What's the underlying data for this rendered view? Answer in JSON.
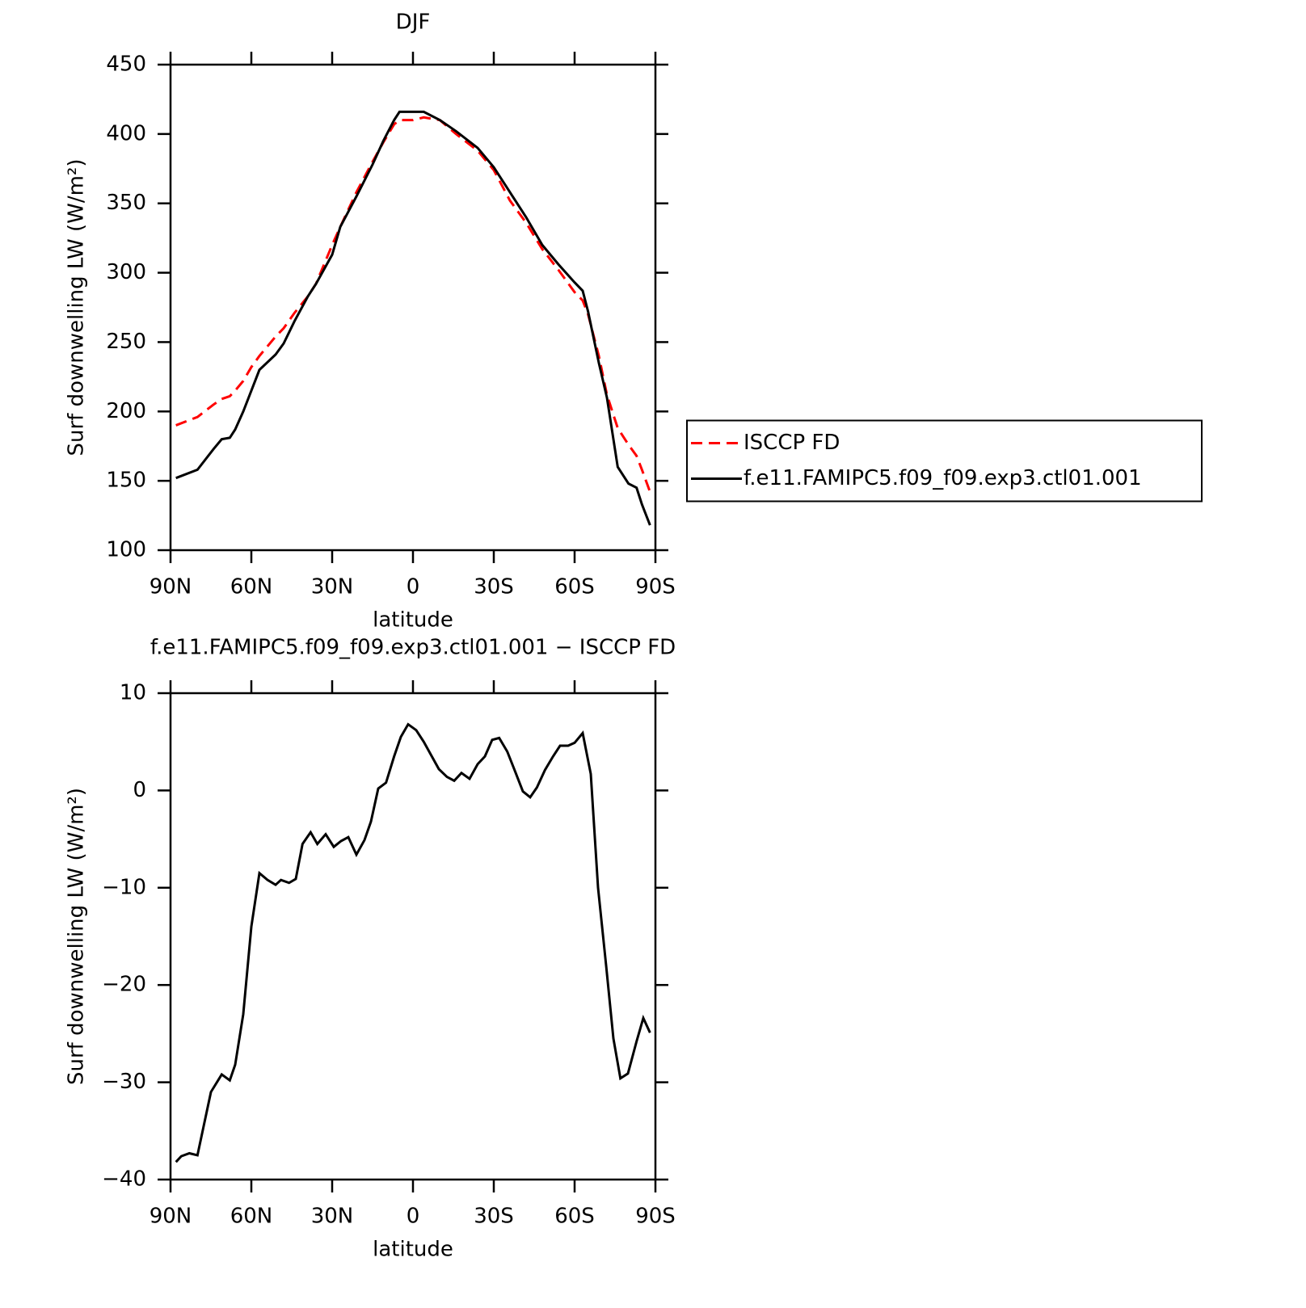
{
  "chart_data": [
    {
      "type": "line",
      "title": "DJF",
      "xlabel": "latitude",
      "ylabel": "Surf downwelling LW (W/m²)",
      "x": [
        88,
        80,
        74,
        71,
        68,
        66,
        63,
        60,
        57,
        51,
        48,
        44,
        39,
        36,
        30,
        27,
        21,
        15,
        11,
        7,
        5,
        0,
        -4,
        -10,
        -16,
        -24,
        -30,
        -36,
        -42,
        -48,
        -54,
        -60,
        -63,
        -65,
        -69,
        -72,
        -76,
        -80,
        -83,
        -85,
        -88
      ],
      "series": [
        {
          "name": "ISCCP FD",
          "color": "#ff0000",
          "style": "dashed",
          "values": [
            190,
            196,
            205,
            209,
            211,
            215,
            222,
            232,
            240,
            254,
            260,
            271,
            283,
            292,
            320,
            333,
            358,
            380,
            394,
            407,
            410,
            410,
            412,
            410,
            400,
            388,
            374,
            352,
            336,
            317,
            302,
            286,
            280,
            270,
            240,
            212,
            188,
            176,
            168,
            158,
            142
          ]
        },
        {
          "name": "f.e11.FAMIPC5.f09_f09.exp3.ctl01.001",
          "color": "#000000",
          "style": "solid",
          "values": [
            152,
            158,
            173,
            180,
            181,
            187,
            200,
            215,
            230,
            241,
            249,
            265,
            283,
            292,
            313,
            333,
            355,
            378,
            395,
            410,
            416,
            416,
            416,
            410,
            402,
            390,
            376,
            358,
            340,
            320,
            306,
            293,
            287,
            272,
            235,
            210,
            160,
            148,
            145,
            133,
            118
          ]
        }
      ],
      "xlim": [
        90,
        -90
      ],
      "xticks": [
        {
          "value": 90,
          "label": "90N"
        },
        {
          "value": 60,
          "label": "60N"
        },
        {
          "value": 30,
          "label": "30N"
        },
        0,
        {
          "value": -30,
          "label": "30S"
        },
        {
          "value": -60,
          "label": "60S"
        },
        {
          "value": -90,
          "label": "90S"
        }
      ],
      "ylim": [
        100,
        450
      ],
      "yticks": [
        100,
        150,
        200,
        250,
        300,
        350,
        400,
        450
      ],
      "legend": "right"
    },
    {
      "type": "line",
      "title": "f.e11.FAMIPC5.f09_f09.exp3.ctl01.001 − ISCCP FD",
      "xlabel": "latitude",
      "ylabel": "Surf downwelling LW (W/m²)",
      "x": [
        88,
        86,
        83,
        80,
        75,
        71,
        68,
        66,
        63,
        60,
        57,
        54,
        51,
        49,
        46,
        43.5,
        41,
        38,
        35.5,
        32.4,
        29.4,
        26.7,
        24,
        21,
        18,
        15.6,
        12.9,
        10,
        7,
        4.5,
        1.8,
        -1.2,
        -4,
        -7,
        -9.6,
        -12.6,
        -15.3,
        -18,
        -21,
        -24,
        -26.7,
        -29.4,
        -32,
        -35,
        -38,
        -40.8,
        -43.5,
        -46,
        -49,
        -52,
        -54.6,
        -57.6,
        -60,
        -63,
        -66,
        -68.7,
        -71.7,
        -74.4,
        -77,
        -79.8,
        -83,
        -85.5,
        -88
      ],
      "series": [
        {
          "color": "#000000",
          "style": "solid",
          "values": [
            -38.2,
            -37.6,
            -37.3,
            -37.5,
            -31,
            -29.2,
            -29.8,
            -28.2,
            -23,
            -14,
            -8.5,
            -9.2,
            -9.7,
            -9.2,
            -9.5,
            -9.1,
            -5.5,
            -4.3,
            -5.5,
            -4.5,
            -5.8,
            -5.2,
            -4.8,
            -6.6,
            -5.1,
            -3.2,
            0.2,
            0.8,
            3.5,
            5.5,
            6.8,
            6.2,
            5.0,
            3.5,
            2.2,
            1.4,
            1.0,
            1.8,
            1.2,
            2.7,
            3.5,
            5.2,
            5.4,
            4.0,
            1.9,
            -0.1,
            -0.7,
            0.3,
            2.1,
            3.5,
            4.6,
            4.6,
            4.9,
            5.9,
            1.7,
            -10,
            -18,
            -25.5,
            -29.6,
            -29.1,
            -25.8,
            -23.4,
            -24.9
          ]
        }
      ],
      "xlim": [
        90,
        -90
      ],
      "xticks": [
        {
          "value": 90,
          "label": "90N"
        },
        {
          "value": 60,
          "label": "60N"
        },
        {
          "value": 30,
          "label": "30N"
        },
        0,
        {
          "value": -30,
          "label": "30S"
        },
        {
          "value": -60,
          "label": "60S"
        },
        {
          "value": -90,
          "label": "90S"
        }
      ],
      "ylim": [
        -40,
        10
      ],
      "yticks": [
        {
          "value": -40,
          "label": "−40"
        },
        {
          "value": -30,
          "label": "−30"
        },
        {
          "value": -20,
          "label": "−20"
        },
        {
          "value": -10,
          "label": "−10"
        },
        0,
        10
      ]
    }
  ]
}
